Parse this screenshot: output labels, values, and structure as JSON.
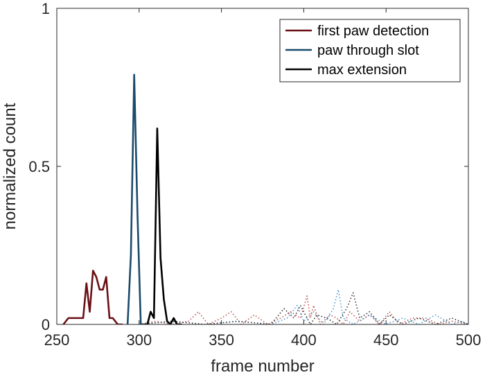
{
  "chart_data": {
    "type": "line",
    "xlabel": "frame number",
    "ylabel": "normalized count",
    "xlim": [
      250,
      500
    ],
    "ylim": [
      0,
      1
    ],
    "xticks": [
      250,
      300,
      350,
      400,
      450,
      500
    ],
    "yticks": [
      0,
      0.5,
      1
    ],
    "ytick_labels": [
      "0",
      "0.5",
      "1"
    ],
    "grid": false,
    "legend_position": "top-right",
    "series": [
      {
        "name": "first paw detection",
        "color": "#6b0f14",
        "style": "solid",
        "x": [
          254,
          257,
          260,
          263,
          266,
          268,
          270,
          272,
          274,
          276,
          278,
          280,
          282,
          284,
          287,
          290
        ],
        "y": [
          0,
          0.02,
          0.02,
          0.02,
          0.02,
          0.13,
          0.04,
          0.17,
          0.15,
          0.11,
          0.11,
          0.15,
          0.02,
          0.02,
          0,
          0
        ]
      },
      {
        "name": "paw through slot",
        "color": "#1a4a6b",
        "style": "solid",
        "x": [
          293,
          295,
          297,
          299,
          301,
          303
        ],
        "y": [
          0,
          0.22,
          0.79,
          0.35,
          0,
          0
        ]
      },
      {
        "name": "max extension",
        "color": "#000000",
        "style": "solid",
        "x": [
          303,
          305,
          307,
          309,
          311,
          313,
          315,
          317,
          319,
          321,
          323,
          326
        ],
        "y": [
          0,
          0,
          0.04,
          0.02,
          0.62,
          0.21,
          0.08,
          0.01,
          0,
          0.02,
          0,
          0
        ]
      },
      {
        "name": "",
        "color": "#c0504d",
        "style": "dotted",
        "x": [
          300,
          310,
          320,
          330,
          336,
          342,
          350,
          356,
          362,
          370,
          378,
          386,
          392,
          398,
          402,
          404,
          406,
          410,
          416,
          420,
          424,
          428,
          434,
          440,
          446,
          452,
          458,
          466,
          474,
          482,
          490,
          500
        ],
        "y": [
          0,
          0.01,
          0,
          0.01,
          0.04,
          0,
          0.02,
          0.04,
          0,
          0.03,
          0,
          0.02,
          0.04,
          0.02,
          0.09,
          0.02,
          0.06,
          0,
          0.03,
          0.02,
          0,
          0.04,
          0.01,
          0.03,
          0,
          0.04,
          0,
          0.02,
          0.02,
          0,
          0.01,
          0
        ]
      },
      {
        "name": "",
        "color": "#4a9ad0",
        "style": "dotted",
        "x": [
          300,
          320,
          340,
          360,
          380,
          390,
          396,
          400,
          406,
          412,
          418,
          421,
          424,
          430,
          440,
          450,
          460,
          470,
          480,
          490,
          496,
          500
        ],
        "y": [
          0,
          0.01,
          0,
          0.01,
          0,
          0.02,
          0.06,
          0.01,
          0.04,
          0,
          0.05,
          0.11,
          0.02,
          0,
          0.03,
          0,
          0.02,
          0,
          0.03,
          0,
          0.01,
          0
        ]
      },
      {
        "name": "",
        "color": "#333333",
        "style": "dotted",
        "x": [
          300,
          320,
          340,
          360,
          380,
          388,
          394,
          398,
          404,
          408,
          414,
          420,
          426,
          430,
          434,
          440,
          446,
          452,
          460,
          470,
          480,
          490,
          500
        ],
        "y": [
          0,
          0.01,
          0,
          0.01,
          0,
          0.05,
          0.02,
          0.06,
          0,
          0.03,
          0.02,
          0,
          0.05,
          0.1,
          0.02,
          0.04,
          0,
          0.03,
          0,
          0.02,
          0,
          0.02,
          0
        ]
      }
    ]
  }
}
